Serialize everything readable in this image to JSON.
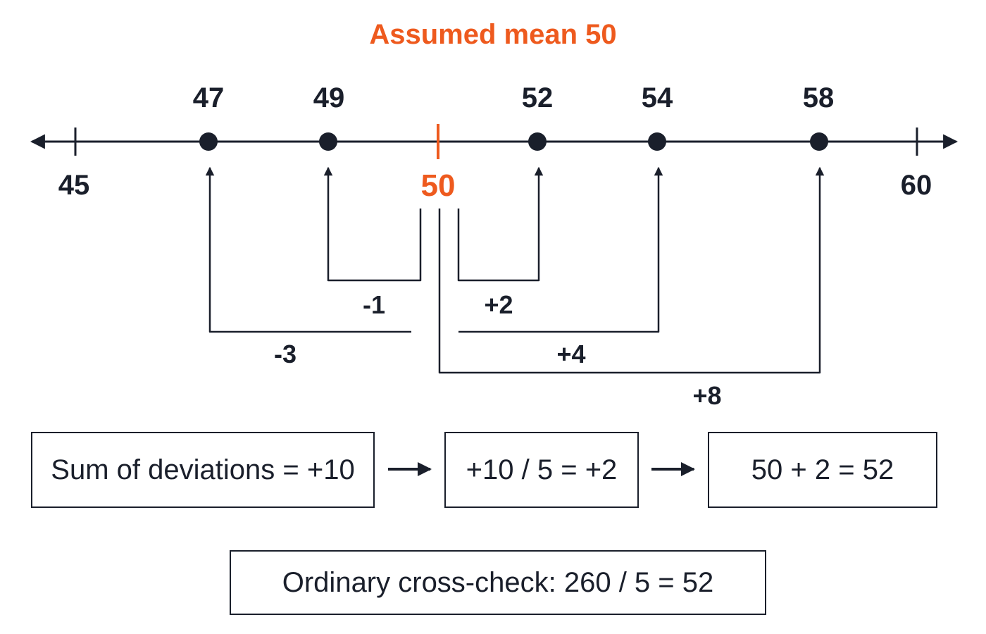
{
  "title": "Assumed mean 50",
  "colors": {
    "ink": "#1a1f2b",
    "accent": "#ee5a1e"
  },
  "number_line": {
    "end_ticks": [
      {
        "value": 45,
        "label": "45"
      },
      {
        "value": 60,
        "label": "60"
      }
    ],
    "assumed_mean": {
      "value": 50,
      "label": "50"
    },
    "points": [
      {
        "value": 47,
        "label": "47",
        "deviation": -3,
        "deviation_label": "-3"
      },
      {
        "value": 49,
        "label": "49",
        "deviation": -1,
        "deviation_label": "-1"
      },
      {
        "value": 52,
        "label": "52",
        "deviation": 2,
        "deviation_label": "+2"
      },
      {
        "value": 54,
        "label": "54",
        "deviation": 4,
        "deviation_label": "+4"
      },
      {
        "value": 58,
        "label": "58",
        "deviation": 8,
        "deviation_label": "+8"
      }
    ]
  },
  "steps": {
    "sum": "Sum of deviations = +10",
    "divide": "+10 / 5 = +2",
    "result": "50 + 2 = 52"
  },
  "cross_check": "Ordinary cross-check: 260 / 5 = 52"
}
